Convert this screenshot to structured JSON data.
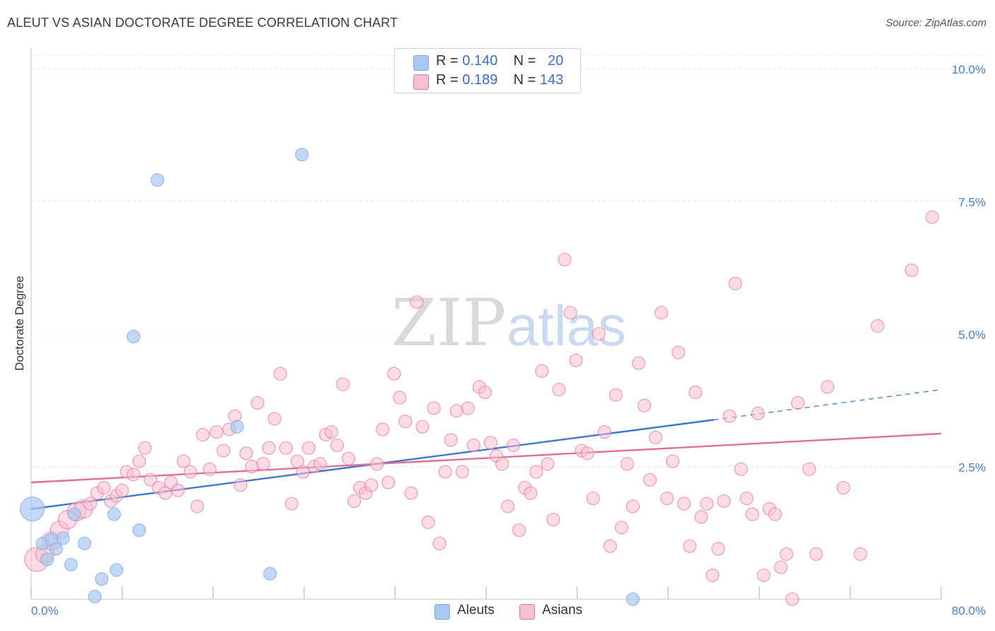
{
  "header": {
    "title": "ALEUT VS ASIAN DOCTORATE DEGREE CORRELATION CHART",
    "source": "Source: ZipAtlas.com"
  },
  "watermark": {
    "zip": "ZIP",
    "atlas": "atlas"
  },
  "legend": {
    "rows": [
      {
        "r_label": "R =",
        "r_value": "0.140",
        "n_label": "N =",
        "n_value": "20",
        "color": "#aac8f0"
      },
      {
        "r_label": "R =",
        "r_value": "0.189",
        "n_label": "N =",
        "n_value": "143",
        "color": "#f8bfd0"
      }
    ]
  },
  "bottom_legend": [
    {
      "label": "Aleuts",
      "color": "#aac8f0"
    },
    {
      "label": "Asians",
      "color": "#f8bfd0"
    }
  ],
  "chart_data": {
    "type": "scatter",
    "title": "ALEUT VS ASIAN DOCTORATE DEGREE CORRELATION CHART",
    "xlabel": "",
    "ylabel": "Doctorate Degree",
    "xlim": [
      0,
      80
    ],
    "ylim": [
      0,
      10.5
    ],
    "x_tick_labels": [
      "0.0%",
      "80.0%"
    ],
    "y_ticks": [
      2.5,
      5.0,
      7.5,
      10.0
    ],
    "y_tick_labels": [
      "2.5%",
      "5.0%",
      "7.5%",
      "10.0%"
    ],
    "grid": true,
    "legend_position": "top-center",
    "series": [
      {
        "name": "Aleuts",
        "color": "#7aa7e6",
        "fill": "#aac8f0",
        "points": [
          [
            0.1,
            1.7,
            3
          ],
          [
            1.0,
            1.05,
            1
          ],
          [
            1.4,
            0.75,
            1
          ],
          [
            1.8,
            1.12,
            1
          ],
          [
            2.2,
            0.95,
            1
          ],
          [
            2.8,
            1.15,
            1
          ],
          [
            3.5,
            0.65,
            1
          ],
          [
            3.8,
            1.6,
            1
          ],
          [
            4.7,
            1.05,
            1
          ],
          [
            5.6,
            0.05,
            1
          ],
          [
            6.2,
            0.38,
            1
          ],
          [
            7.5,
            0.55,
            1
          ],
          [
            7.3,
            1.6,
            1
          ],
          [
            9.5,
            1.3,
            1
          ],
          [
            9.0,
            4.95,
            1
          ],
          [
            11.1,
            7.9,
            1
          ],
          [
            18.1,
            3.25,
            1
          ],
          [
            21.0,
            0.48,
            1
          ],
          [
            23.8,
            8.38,
            1
          ],
          [
            52.9,
            0.0,
            1
          ]
        ]
      },
      {
        "name": "Asians",
        "color": "#e87a9c",
        "fill": "#f8bfd0",
        "points": [
          [
            0.5,
            0.75,
            3
          ],
          [
            1.2,
            0.85,
            2
          ],
          [
            1.8,
            1.1,
            2
          ],
          [
            2.5,
            1.3,
            2
          ],
          [
            3.2,
            1.5,
            2
          ],
          [
            4.0,
            1.65,
            2
          ],
          [
            4.6,
            1.7,
            2
          ],
          [
            5.2,
            1.8,
            1
          ],
          [
            5.8,
            2.0,
            1
          ],
          [
            6.4,
            2.1,
            1
          ],
          [
            7.0,
            1.85,
            1
          ],
          [
            7.5,
            1.95,
            1
          ],
          [
            8.0,
            2.05,
            1
          ],
          [
            8.4,
            2.4,
            1
          ],
          [
            9.0,
            2.35,
            1
          ],
          [
            9.5,
            2.6,
            1
          ],
          [
            10.0,
            2.85,
            1
          ],
          [
            10.5,
            2.25,
            1
          ],
          [
            11.2,
            2.1,
            1
          ],
          [
            11.8,
            2.0,
            1
          ],
          [
            12.3,
            2.2,
            1
          ],
          [
            12.9,
            2.05,
            1
          ],
          [
            13.4,
            2.6,
            1
          ],
          [
            14.0,
            2.4,
            1
          ],
          [
            14.6,
            1.75,
            1
          ],
          [
            15.1,
            3.1,
            1
          ],
          [
            15.7,
            2.45,
            1
          ],
          [
            16.3,
            3.15,
            1
          ],
          [
            16.9,
            2.8,
            1
          ],
          [
            17.4,
            3.2,
            1
          ],
          [
            17.9,
            3.45,
            1
          ],
          [
            18.4,
            2.15,
            1
          ],
          [
            18.9,
            2.75,
            1
          ],
          [
            19.4,
            2.5,
            1
          ],
          [
            19.9,
            3.7,
            1
          ],
          [
            20.4,
            2.55,
            1
          ],
          [
            20.9,
            2.85,
            1
          ],
          [
            21.4,
            3.4,
            1
          ],
          [
            21.9,
            4.25,
            1
          ],
          [
            22.4,
            2.85,
            1
          ],
          [
            22.9,
            1.8,
            1
          ],
          [
            23.4,
            2.6,
            1
          ],
          [
            23.9,
            2.4,
            1
          ],
          [
            24.4,
            2.85,
            1
          ],
          [
            24.9,
            2.5,
            1
          ],
          [
            25.4,
            2.55,
            1
          ],
          [
            25.9,
            3.1,
            1
          ],
          [
            26.4,
            3.15,
            1
          ],
          [
            26.9,
            2.9,
            1
          ],
          [
            27.4,
            4.05,
            1
          ],
          [
            27.9,
            2.65,
            1
          ],
          [
            28.4,
            1.85,
            1
          ],
          [
            28.9,
            2.1,
            1
          ],
          [
            29.4,
            2.0,
            1
          ],
          [
            29.9,
            2.15,
            1
          ],
          [
            30.4,
            2.55,
            1
          ],
          [
            30.9,
            3.2,
            1
          ],
          [
            31.4,
            2.2,
            1
          ],
          [
            31.9,
            4.25,
            1
          ],
          [
            32.4,
            3.8,
            1
          ],
          [
            32.9,
            3.35,
            1
          ],
          [
            33.4,
            2.0,
            1
          ],
          [
            33.9,
            5.6,
            1
          ],
          [
            34.4,
            3.25,
            1
          ],
          [
            34.9,
            1.45,
            1
          ],
          [
            35.4,
            3.6,
            1
          ],
          [
            35.9,
            1.05,
            1
          ],
          [
            36.4,
            2.4,
            1
          ],
          [
            36.9,
            3.0,
            1
          ],
          [
            37.4,
            3.55,
            1
          ],
          [
            37.9,
            2.4,
            1
          ],
          [
            38.4,
            3.6,
            1
          ],
          [
            38.9,
            2.9,
            1
          ],
          [
            39.4,
            4.0,
            1
          ],
          [
            39.9,
            3.9,
            1
          ],
          [
            40.4,
            2.95,
            1
          ],
          [
            40.9,
            2.7,
            1
          ],
          [
            41.4,
            2.55,
            1
          ],
          [
            41.9,
            1.75,
            1
          ],
          [
            42.4,
            2.9,
            1
          ],
          [
            42.9,
            1.3,
            1
          ],
          [
            43.4,
            2.1,
            1
          ],
          [
            43.9,
            2.0,
            1
          ],
          [
            44.4,
            2.4,
            1
          ],
          [
            44.9,
            4.3,
            1
          ],
          [
            45.4,
            2.55,
            1
          ],
          [
            45.9,
            1.5,
            1
          ],
          [
            46.4,
            3.95,
            1
          ],
          [
            46.9,
            6.4,
            1
          ],
          [
            47.4,
            5.4,
            1
          ],
          [
            47.9,
            4.5,
            1
          ],
          [
            48.4,
            2.8,
            1
          ],
          [
            48.9,
            2.75,
            1
          ],
          [
            49.4,
            1.9,
            1
          ],
          [
            49.9,
            5.0,
            1
          ],
          [
            50.4,
            3.15,
            1
          ],
          [
            50.9,
            1.0,
            1
          ],
          [
            51.4,
            3.85,
            1
          ],
          [
            51.9,
            1.35,
            1
          ],
          [
            52.4,
            2.55,
            1
          ],
          [
            52.9,
            1.75,
            1
          ],
          [
            53.4,
            4.45,
            1
          ],
          [
            53.9,
            3.65,
            1
          ],
          [
            54.4,
            2.25,
            1
          ],
          [
            54.9,
            3.05,
            1
          ],
          [
            55.4,
            5.4,
            1
          ],
          [
            55.9,
            1.9,
            1
          ],
          [
            56.4,
            2.6,
            1
          ],
          [
            56.9,
            4.65,
            1
          ],
          [
            57.4,
            1.8,
            1
          ],
          [
            57.9,
            1.0,
            1
          ],
          [
            58.4,
            3.9,
            1
          ],
          [
            58.9,
            1.55,
            1
          ],
          [
            59.4,
            1.8,
            1
          ],
          [
            59.9,
            0.45,
            1
          ],
          [
            60.4,
            0.95,
            1
          ],
          [
            60.9,
            1.85,
            1
          ],
          [
            61.4,
            3.45,
            1
          ],
          [
            61.9,
            5.95,
            1
          ],
          [
            62.4,
            2.45,
            1
          ],
          [
            62.9,
            1.9,
            1
          ],
          [
            63.4,
            1.6,
            1
          ],
          [
            63.9,
            3.5,
            1
          ],
          [
            64.4,
            0.45,
            1
          ],
          [
            64.9,
            1.7,
            1
          ],
          [
            65.4,
            1.6,
            1
          ],
          [
            65.9,
            0.6,
            1
          ],
          [
            66.4,
            0.85,
            1
          ],
          [
            66.9,
            0.0,
            1
          ],
          [
            67.4,
            3.7,
            1
          ],
          [
            68.4,
            2.45,
            1
          ],
          [
            69.0,
            0.85,
            1
          ],
          [
            70.0,
            4.0,
            1
          ],
          [
            71.4,
            2.1,
            1
          ],
          [
            72.9,
            0.85,
            1
          ],
          [
            74.4,
            5.15,
            1
          ],
          [
            77.4,
            6.2,
            1
          ],
          [
            79.2,
            7.2,
            1
          ]
        ]
      }
    ],
    "trendlines": [
      {
        "series": "Aleuts",
        "from": [
          0,
          1.7
        ],
        "to": [
          60,
          3.38
        ],
        "dashed_to": [
          80,
          3.95
        ]
      },
      {
        "series": "Asians",
        "from": [
          0,
          2.2
        ],
        "to": [
          80,
          3.12
        ]
      }
    ]
  }
}
